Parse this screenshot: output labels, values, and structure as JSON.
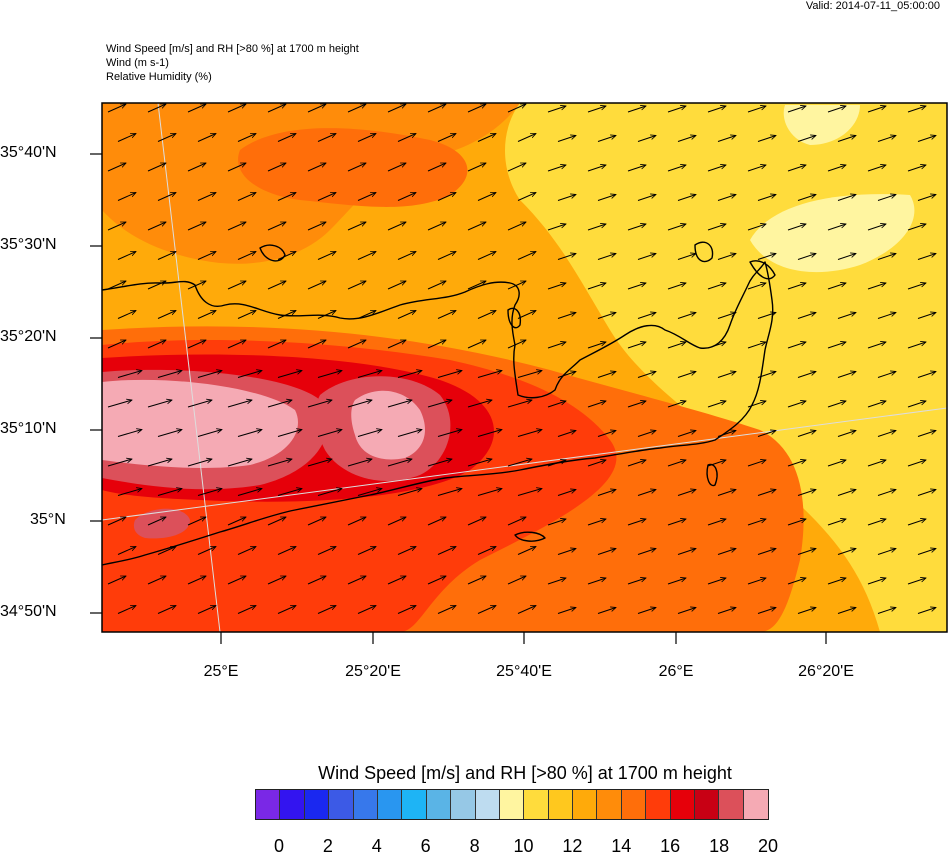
{
  "valid_time": "Valid: 2014-07-11_05:00:00",
  "titles": {
    "line1": "Wind Speed [m/s] and RH [>80 %] at 1700 m height",
    "line2": "Wind   (m s-1)",
    "line3": "Relative Humidity   (%)"
  },
  "latitude_labels": [
    "35°40'N",
    "35°30'N",
    "35°20'N",
    "35°10'N",
    "35°N",
    "34°50'N"
  ],
  "longitude_labels": [
    "25°E",
    "25°20'E",
    "25°40'E",
    "26°E",
    "26°20'E"
  ],
  "colorbar": {
    "title": "Wind Speed [m/s] and RH [>80 %] at 1700 m height",
    "tick_labels": [
      "0",
      "2",
      "4",
      "6",
      "8",
      "10",
      "12",
      "14",
      "16",
      "18",
      "20"
    ],
    "colors": [
      "#7a28e6",
      "#3314f0",
      "#1a28f0",
      "#3c5ae6",
      "#3778eb",
      "#2996f0",
      "#1eb4f5",
      "#5ab4e6",
      "#96c8e6",
      "#bedcf0",
      "#fff5a0",
      "#ffdc3c",
      "#ffc81e",
      "#ffaa0a",
      "#ff8c0a",
      "#ff6e0a",
      "#ff3c0a",
      "#e6000a",
      "#c80014",
      "#dc505a",
      "#f5aab4"
    ]
  },
  "map": {
    "region": "Crete",
    "field_colors": {
      "low": "#fff5a0",
      "mid_low": "#ffdc3c",
      "mid": "#ffaa0a",
      "mid_high": "#ff8c0a",
      "high": "#ff6e0a",
      "very_high": "#ff3c0a",
      "extreme": "#e6000a",
      "max": "#dc505a",
      "peak": "#f5aab4"
    }
  }
}
